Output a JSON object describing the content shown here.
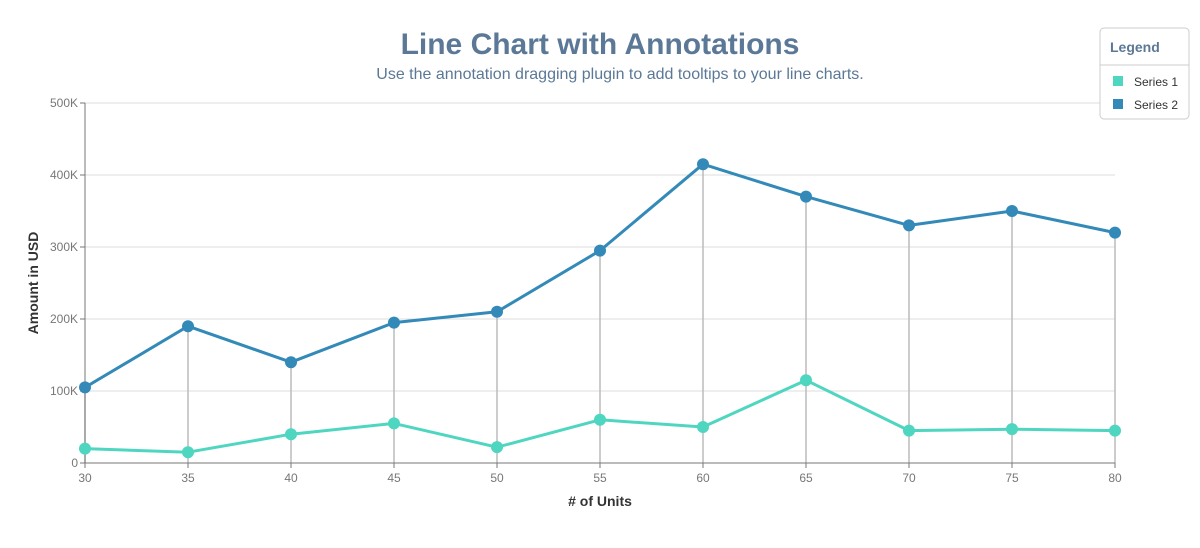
{
  "theme": {
    "title_color": "#5b7896",
    "grid_color": "#dddddd",
    "axis_color": "#777777",
    "drop_line_color": "#bbbbbb",
    "legend_border": "#cccccc"
  },
  "legend": {
    "title": "Legend",
    "placement": "top-right"
  },
  "chart_data": {
    "type": "line",
    "title": "Line Chart with Annotations",
    "subtitle": "Use the annotation dragging plugin to add tooltips to your line charts.",
    "xlabel": "# of Units",
    "ylabel": "Amount in USD",
    "x": [
      30,
      35,
      40,
      45,
      50,
      55,
      60,
      65,
      70,
      75,
      80
    ],
    "xlim": [
      30,
      80
    ],
    "ylim": [
      0,
      500000
    ],
    "x_ticks": [
      "30",
      "35",
      "40",
      "45",
      "50",
      "55",
      "60",
      "65",
      "70",
      "75",
      "80"
    ],
    "y_ticks": [
      {
        "value": 0,
        "label": "0"
      },
      {
        "value": 100000,
        "label": "100K"
      },
      {
        "value": 200000,
        "label": "200K"
      },
      {
        "value": 300000,
        "label": "300K"
      },
      {
        "value": 400000,
        "label": "400K"
      },
      {
        "value": 500000,
        "label": "500K"
      }
    ],
    "grid": true,
    "series": [
      {
        "name": "Series 1",
        "color": "#4fd6c0",
        "values": [
          20000,
          15000,
          40000,
          55000,
          22000,
          60000,
          50000,
          115000,
          45000,
          47000,
          45000
        ]
      },
      {
        "name": "Series 2",
        "color": "#338ab8",
        "values": [
          105000,
          190000,
          140000,
          195000,
          210000,
          295000,
          415000,
          370000,
          330000,
          350000,
          320000
        ]
      }
    ]
  }
}
